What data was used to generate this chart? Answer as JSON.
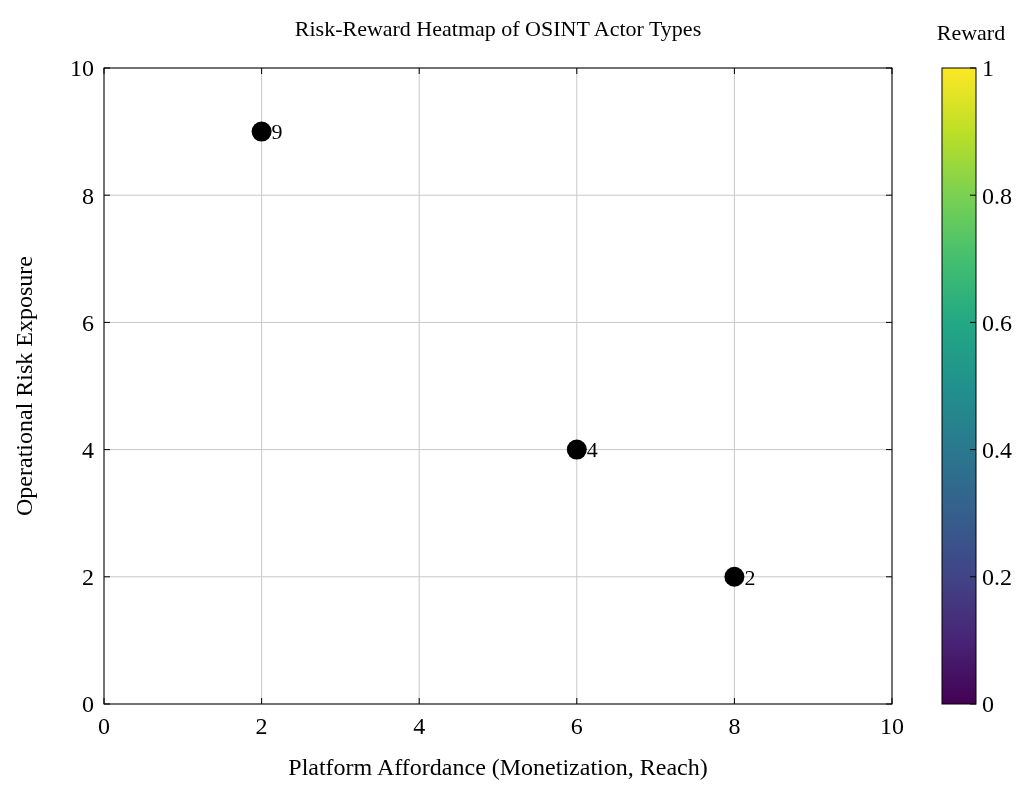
{
  "chart_data": {
    "type": "scatter",
    "title": "Risk-Reward Heatmap of OSINT Actor Types",
    "xlabel": "Platform Affordance (Monetization, Reach)",
    "ylabel": "Operational Risk Exposure",
    "clabel": "Reward",
    "series": [
      {
        "color": "#000000",
        "x": [
          2,
          6,
          8
        ],
        "values": [
          9,
          4,
          2
        ],
        "value_labels": [
          "9",
          "4",
          "2"
        ]
      }
    ],
    "xlim": [
      0,
      10
    ],
    "xticks": [
      0,
      2,
      4,
      6,
      8,
      10
    ],
    "ylim": [
      0,
      10
    ],
    "yticks": [
      0,
      2,
      4,
      6,
      8,
      10
    ],
    "clim": [
      0,
      1
    ],
    "cticks": [
      0,
      0.2,
      0.4,
      0.6,
      0.8,
      1
    ],
    "grid": true,
    "marker": "circle"
  }
}
